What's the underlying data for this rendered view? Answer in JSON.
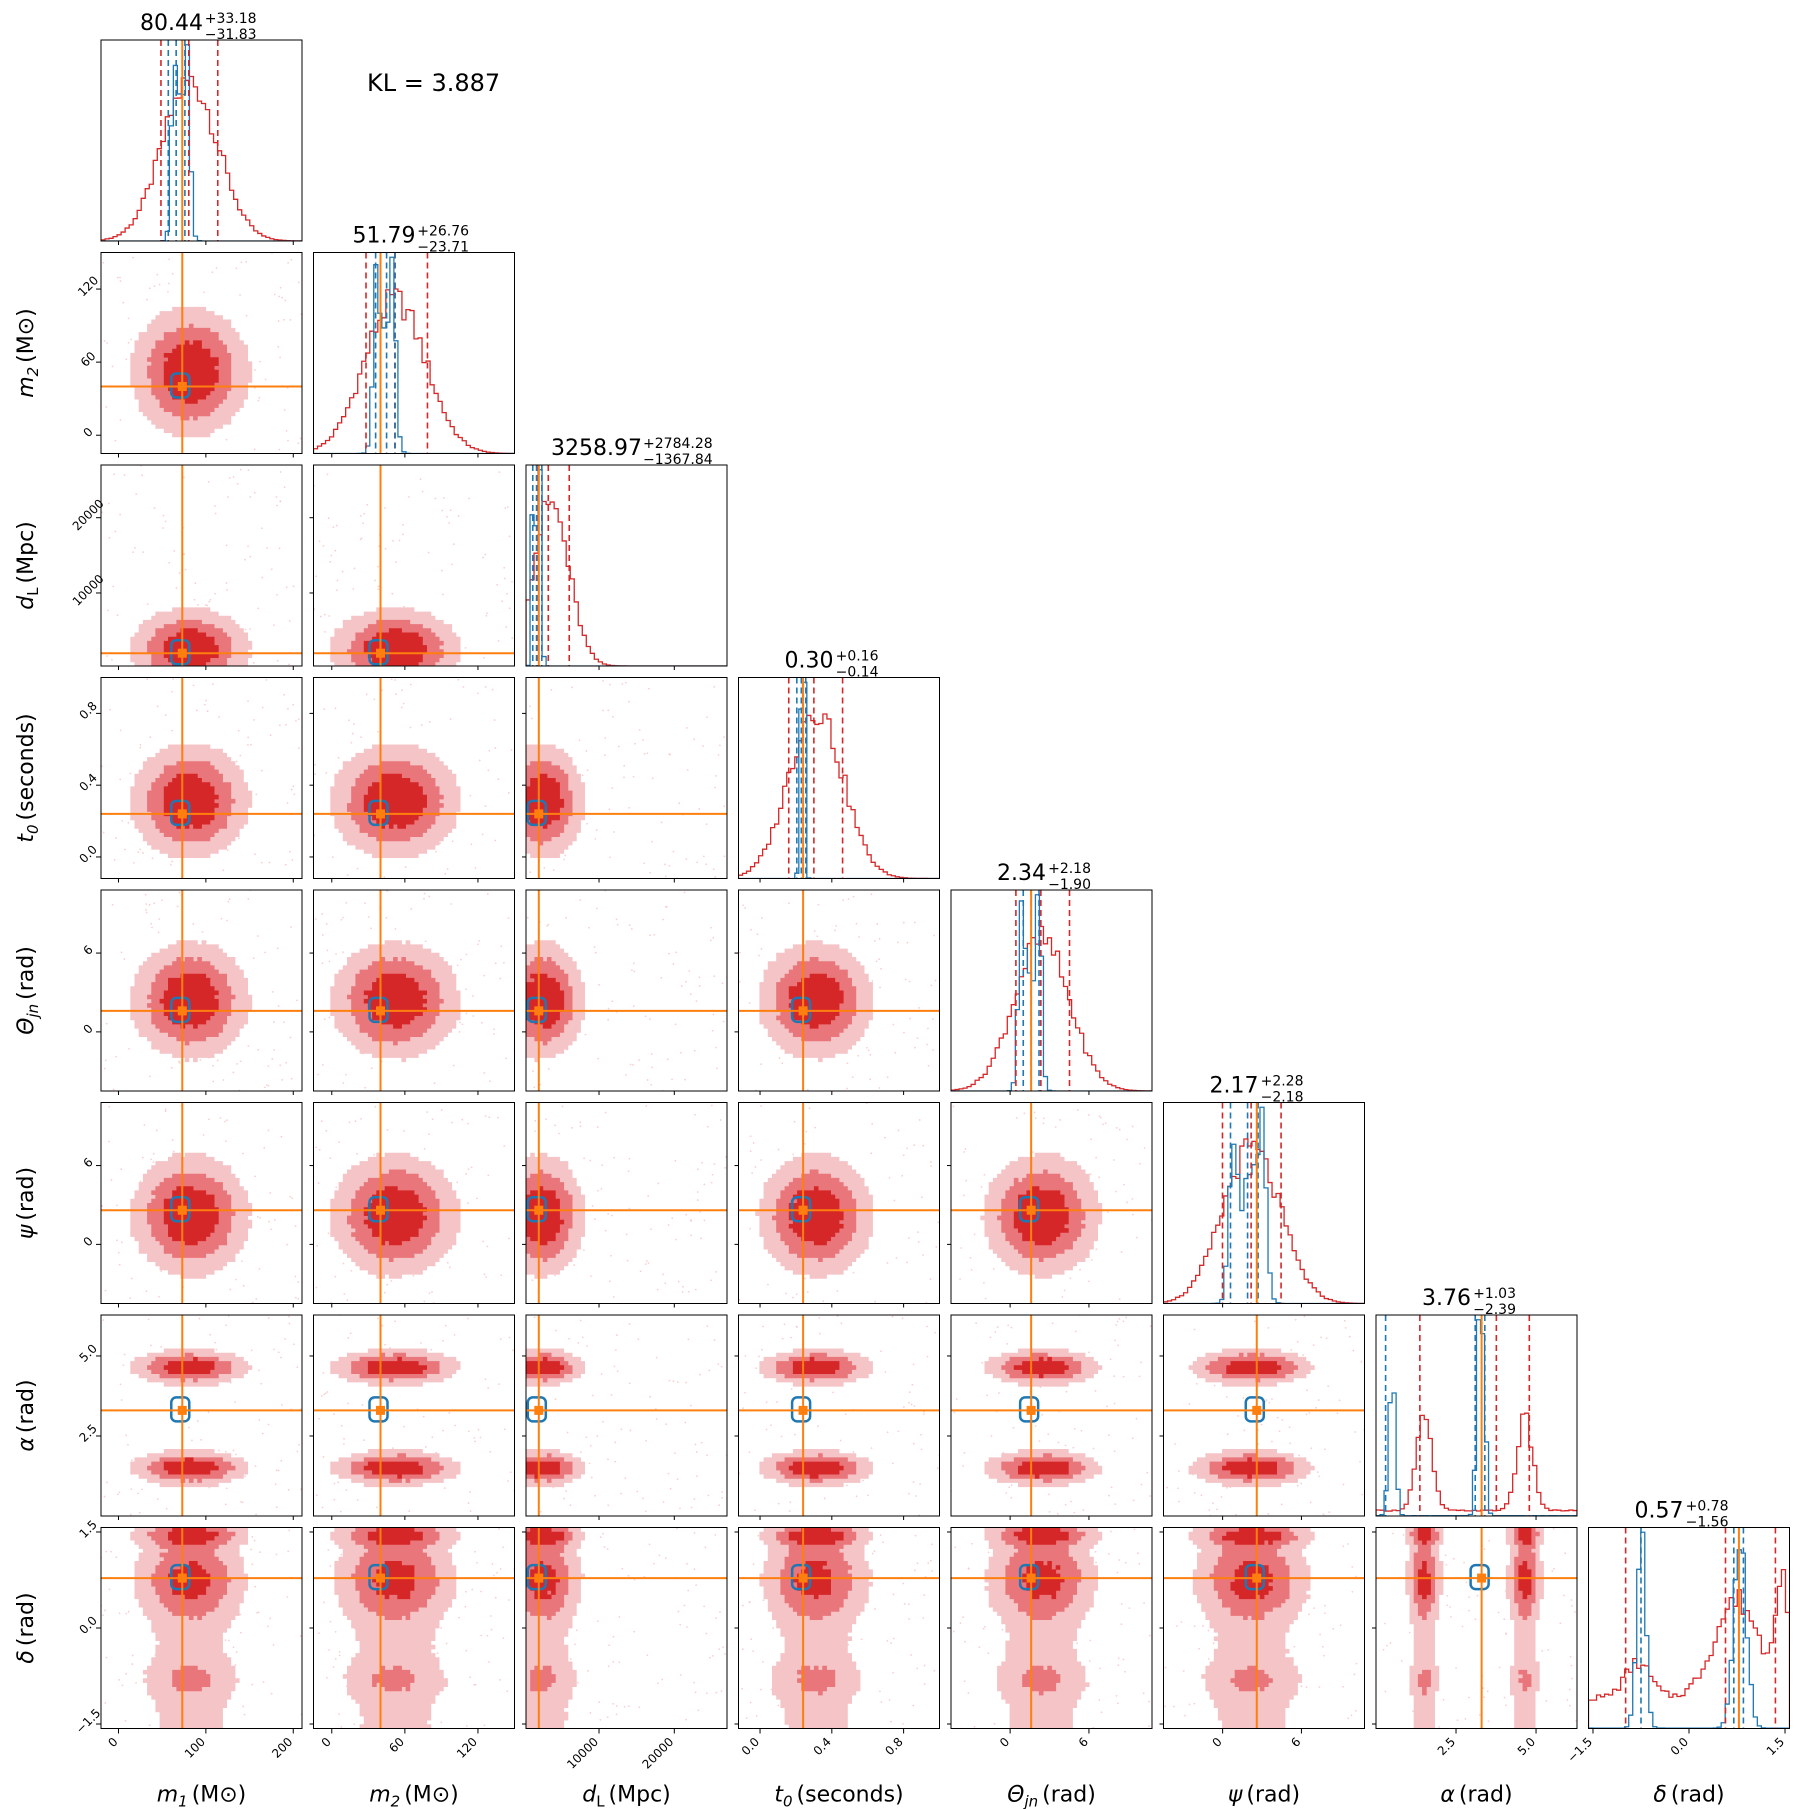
{
  "kl_text": "KL = 3.887",
  "colors": {
    "red": "#d62728",
    "red_mid": "#e8767a",
    "red_light": "#f5c4c6",
    "blue": "#1f77b4",
    "orange": "#ff7f0e",
    "frame": "#000000"
  },
  "chart_data": {
    "type": "corner",
    "parameters": [
      {
        "key": "m1",
        "label_main": "m",
        "label_sub": "1",
        "label_unit": "(M⊙)",
        "range": [
          -20,
          210
        ],
        "ticks": [
          0,
          100,
          200
        ],
        "tick_labels": [
          "0",
          "100",
          "200"
        ],
        "injected": 73,
        "title": {
          "median": "80.44",
          "plus": "+33.18",
          "minus": "−31.83"
        },
        "post": {
          "mean": 82,
          "sd": 32
        },
        "ref": {
          "mean": 72,
          "sd": 8
        },
        "quantiles": [
          48.6,
          80.44,
          113.6
        ],
        "ref_quantiles": [
          57,
          66,
          76
        ],
        "ref_peaks": [
          63,
          79
        ]
      },
      {
        "key": "m2",
        "label_main": "m",
        "label_sub": "2",
        "label_unit": "(M⊙)",
        "range": [
          -15,
          150
        ],
        "ticks": [
          0,
          60,
          120
        ],
        "tick_labels": [
          "0",
          "60",
          "120"
        ],
        "injected": 40,
        "title": {
          "median": "51.79",
          "plus": "+26.76",
          "minus": "−23.71"
        },
        "post": {
          "mean": 52,
          "sd": 25
        },
        "ref": {
          "mean": 44,
          "sd": 7
        },
        "quantiles": [
          28.1,
          51.79,
          78.55
        ],
        "ref_quantiles": [
          36,
          45,
          52
        ],
        "ref_peaks": [
          36,
          50
        ]
      },
      {
        "key": "dL",
        "label_main": "d",
        "label_sub": "L",
        "label_unit": "(Mpc)",
        "range": [
          300,
          27000
        ],
        "ticks": [
          10000,
          20000
        ],
        "tick_labels": [
          "10000",
          "20000"
        ],
        "injected": 2000,
        "title": {
          "median": "3258.97",
          "plus": "+2784.28",
          "minus": "−1367.84"
        },
        "post": {
          "mean": 3600,
          "sd": 2400
        },
        "ref": {
          "mean": 1700,
          "sd": 450
        },
        "quantiles": [
          1891.1,
          3258.97,
          6043.3
        ],
        "ref_quantiles": [
          1200,
          1700,
          2400
        ],
        "ref_peaks": [
          1200,
          2300
        ]
      },
      {
        "key": "t0",
        "label_main": "t",
        "label_sub": "0",
        "label_unit": "(seconds)",
        "range": [
          -0.12,
          1.0
        ],
        "ticks": [
          0.0,
          0.4,
          0.8
        ],
        "tick_labels": [
          "0.0",
          "0.4",
          "0.8"
        ],
        "injected": 0.24,
        "title": {
          "median": "0.30",
          "plus": "+0.16",
          "minus": "−0.14"
        },
        "post": {
          "mean": 0.31,
          "sd": 0.15
        },
        "ref": {
          "mean": 0.235,
          "sd": 0.015
        },
        "quantiles": [
          0.16,
          0.3,
          0.46
        ],
        "ref_quantiles": [
          0.205,
          0.23,
          0.255
        ],
        "ref_peaks": [
          0.22,
          0.25
        ]
      },
      {
        "key": "theta",
        "label_main": "Θ",
        "label_sub": "jn",
        "label_unit": "(rad)",
        "range": [
          -4.5,
          10.8
        ],
        "ticks": [
          0,
          6
        ],
        "tick_labels": [
          "0",
          "6"
        ],
        "injected": 1.6,
        "title": {
          "median": "2.34",
          "plus": "+2.18",
          "minus": "−1.90"
        },
        "post": {
          "mean": 2.4,
          "sd": 2.1
        },
        "ref": {
          "mean": 1.5,
          "sd": 0.6
        },
        "quantiles": [
          0.44,
          2.34,
          4.52
        ],
        "ref_quantiles": [
          1.0,
          1.6,
          2.2
        ],
        "ref_peaks": [
          0.8,
          2.2
        ]
      },
      {
        "key": "psi",
        "label_main": "ψ",
        "label_sub": "",
        "label_unit": "(rad)",
        "range": [
          -4.5,
          10.8
        ],
        "ticks": [
          0,
          6
        ],
        "tick_labels": [
          "0",
          "6"
        ],
        "injected": 2.6,
        "title": {
          "median": "2.17",
          "plus": "+2.28",
          "minus": "−2.18"
        },
        "post": {
          "mean": 2.2,
          "sd": 2.2
        },
        "ref": {
          "mean": 2.0,
          "sd": 0.9
        },
        "quantiles": [
          -0.01,
          2.17,
          4.45
        ],
        "ref_quantiles": [
          0.6,
          1.9,
          2.7
        ],
        "ref_peaks": [
          0.8,
          3.0
        ]
      },
      {
        "key": "alpha",
        "label_main": "α",
        "label_sub": "",
        "label_unit": "(rad)",
        "range": [
          0.0,
          6.28
        ],
        "ticks": [
          2.5,
          5.0
        ],
        "tick_labels": [
          "2.5",
          "5.0"
        ],
        "injected": 3.3,
        "title": {
          "median": "3.76",
          "plus": "+1.03",
          "minus": "−2.39"
        },
        "multimodal": [
          [
            1.5,
            0.55
          ],
          [
            4.65,
            0.55
          ]
        ],
        "ref_multimodal": [
          [
            0.5,
            0.1
          ],
          [
            3.2,
            0.08
          ],
          [
            3.35,
            0.08
          ]
        ],
        "quantiles": [
          1.37,
          3.76,
          4.79
        ],
        "ref_quantiles": [
          0.3,
          3.1,
          3.4
        ],
        "ref_peaks": [
          3.2,
          0.5
        ]
      },
      {
        "key": "delta",
        "label_main": "δ",
        "label_sub": "",
        "label_unit": "(rad)",
        "range": [
          -1.57,
          1.57
        ],
        "ticks": [
          -1.5,
          0.0,
          1.5
        ],
        "tick_labels": [
          "−1.5",
          "0.0",
          "1.5"
        ],
        "injected": 0.78,
        "title": {
          "median": "0.57",
          "plus": "+0.78",
          "minus": "−1.56"
        },
        "multimodal": [
          [
            0.9,
            0.45
          ],
          [
            -0.95,
            0.35
          ],
          [
            1.45,
            0.15
          ]
        ],
        "ref_multimodal": [
          [
            0.8,
            0.1
          ],
          [
            -0.75,
            0.07
          ]
        ],
        "quantiles": [
          -0.99,
          0.57,
          1.35
        ],
        "ref_quantiles": [
          -0.75,
          0.7,
          0.85
        ],
        "ref_peaks": [
          -0.8,
          0.8
        ]
      }
    ]
  }
}
